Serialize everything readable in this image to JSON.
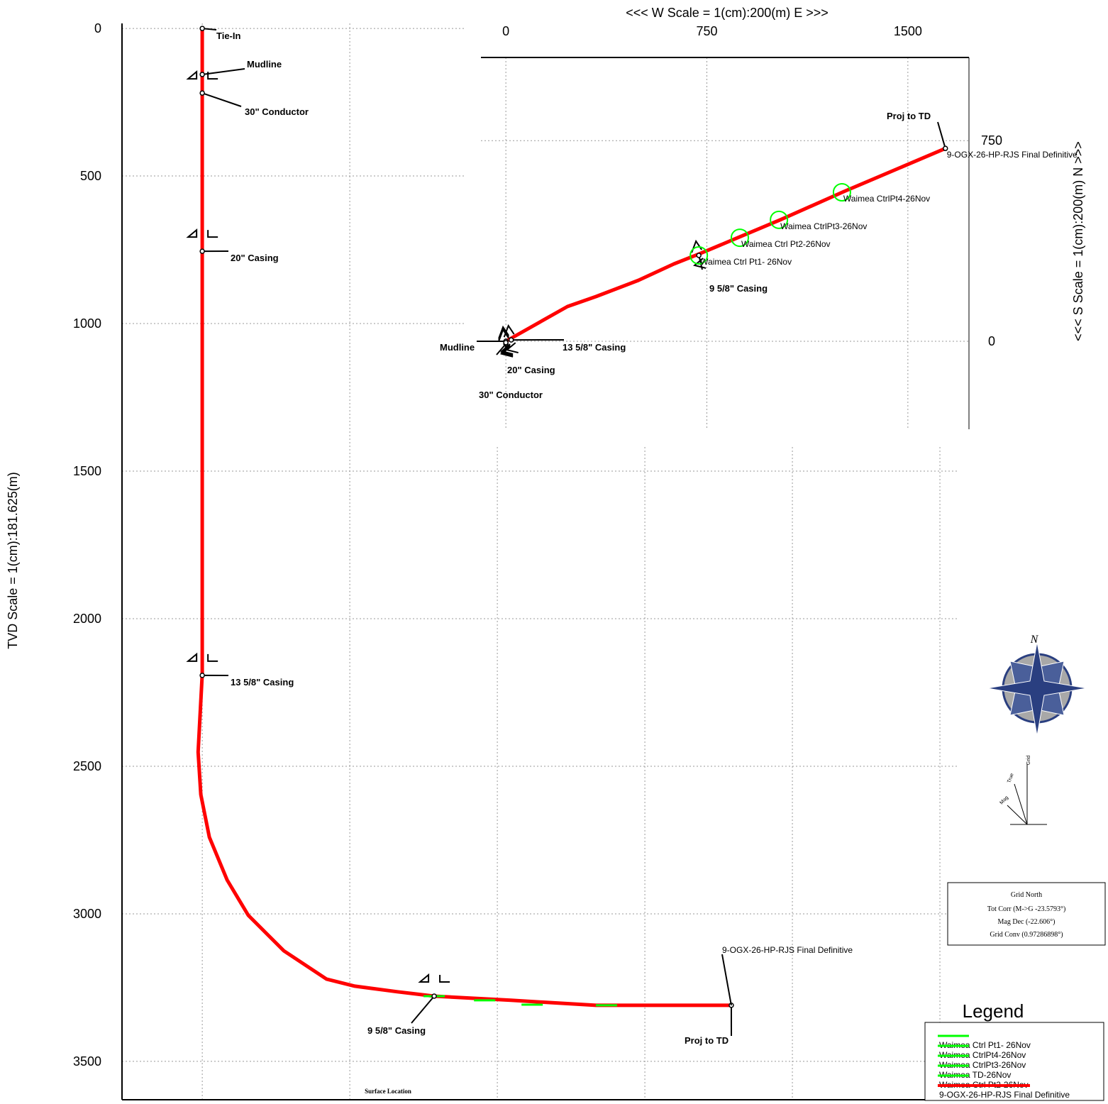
{
  "chart_data": [
    {
      "type": "line",
      "ylabel": "TVD Scale = 1(cm):181.625(m)",
      "xlim": [
        -272,
        2560
      ],
      "ylim": [
        -17,
        3630
      ],
      "y_inverted": true,
      "yticks": [
        0,
        500,
        1000,
        1500,
        2000,
        2500,
        3000,
        3500
      ],
      "xgrid": [
        0,
        500,
        1000,
        1500,
        2000,
        2500
      ],
      "grid": true,
      "series": [
        {
          "name": "9-OGX-26-HP-RJS Final Definitive",
          "color": "#ff0000",
          "x": [
            0,
            0,
            -14,
            -5,
            24,
            84,
            156,
            276,
            421,
            517,
            661,
            786,
            1046,
            1334,
            1793
          ],
          "values": [
            0,
            2188,
            2452,
            2596,
            2740,
            2885,
            3005,
            3125,
            3221,
            3245,
            3264,
            3279,
            3293,
            3310,
            3310
          ]
        }
      ],
      "markers": [
        {
          "label": "Tie-In",
          "x": 0,
          "y": 0
        },
        {
          "label": "Mudline",
          "x": 0,
          "y": 156
        },
        {
          "label": "30\" Conductor",
          "x": 0,
          "y": 219
        },
        {
          "label": "20\" Casing",
          "x": 0,
          "y": 755
        },
        {
          "label": "13 5/8\" Casing",
          "x": 0,
          "y": 2192
        },
        {
          "label": "9 5/8\" Casing",
          "x": 786,
          "y": 3279
        },
        {
          "label": "Proj to TD",
          "x": 1793,
          "y": 3310
        }
      ],
      "controls": [
        {
          "x": 786,
          "y": 3279
        },
        {
          "x": 957,
          "y": 3293
        },
        {
          "x": 1118,
          "y": 3308
        },
        {
          "x": 1370,
          "y": 3310
        }
      ],
      "control_color": "#00ff00",
      "footer": "Surface Location"
    },
    {
      "type": "line",
      "title": "<<<  W   Scale = 1(cm):200(m)   E  >>>",
      "ylabel": "<<<  S   Scale = 1(cm):200(m)   N  >>>",
      "xlim": [
        -93,
        1728
      ],
      "ylim": [
        -329,
        1061
      ],
      "xticks": [
        0,
        750,
        1500
      ],
      "yticks": [
        0,
        750
      ],
      "grid": true,
      "series": [
        {
          "name": "9-OGX-26-HP-RJS Final Definitive",
          "color": "#ff0000",
          "x": [
            0,
            230,
            336,
            495,
            627,
            720,
            865,
            1024,
            1262,
            1640
          ],
          "values": [
            0,
            130,
            167,
            228,
            289,
            326,
            387,
            454,
            560,
            721
          ]
        }
      ],
      "markers": [
        {
          "label": "Mudline",
          "x": 0,
          "y": 0
        },
        {
          "label": "30\" Conductor",
          "x": 0,
          "y": -10
        },
        {
          "label": "20\" Casing",
          "x": 0,
          "y": -5
        },
        {
          "label": "13 5/8\" Casing",
          "x": 20,
          "y": 5
        },
        {
          "label": "9 5/8\" Casing",
          "x": 720,
          "y": 321
        },
        {
          "label": "Proj to TD",
          "x": 1640,
          "y": 721
        }
      ],
      "controls": [
        {
          "label": "Waimea Ctrl Pt1- 26Nov",
          "x": 720,
          "y": 321
        },
        {
          "label": "Waimea Ctrl Pt2-26Nov",
          "x": 873,
          "y": 387
        },
        {
          "label": "Waimea CtrlPt3-26Nov",
          "x": 1019,
          "y": 454
        },
        {
          "label": "Waimea CtrlPt4-26Nov",
          "x": 1254,
          "y": 557
        }
      ],
      "control_color": "#00ff00"
    }
  ],
  "compass": {
    "north": "N",
    "grid": "Grid",
    "true": "True",
    "mag": "Mag"
  },
  "north_box": {
    "title": "Grid North",
    "lines": [
      "Tot Corr (M->G -23.5793°)",
      "Mag Dec (-22.606°)",
      "Grid Conv (0.97286898°)"
    ]
  },
  "legend": {
    "title": "Legend",
    "items": [
      {
        "name": "Waimea Ctrl Pt1- 26Nov",
        "color": "#00ff00"
      },
      {
        "name": "Waimea CtrlPt4-26Nov",
        "color": "#00ff00"
      },
      {
        "name": "Waimea CtrlPt3-26Nov",
        "color": "#00ff00"
      },
      {
        "name": "Waimea TD-26Nov",
        "color": "#00ff00"
      },
      {
        "name": "Waimea Ctrl Pt2-26Nov",
        "color": "#00ff00"
      },
      {
        "name": "9-OGX-26-HP-RJS Final Definitive",
        "color": "#ff0000"
      }
    ]
  }
}
